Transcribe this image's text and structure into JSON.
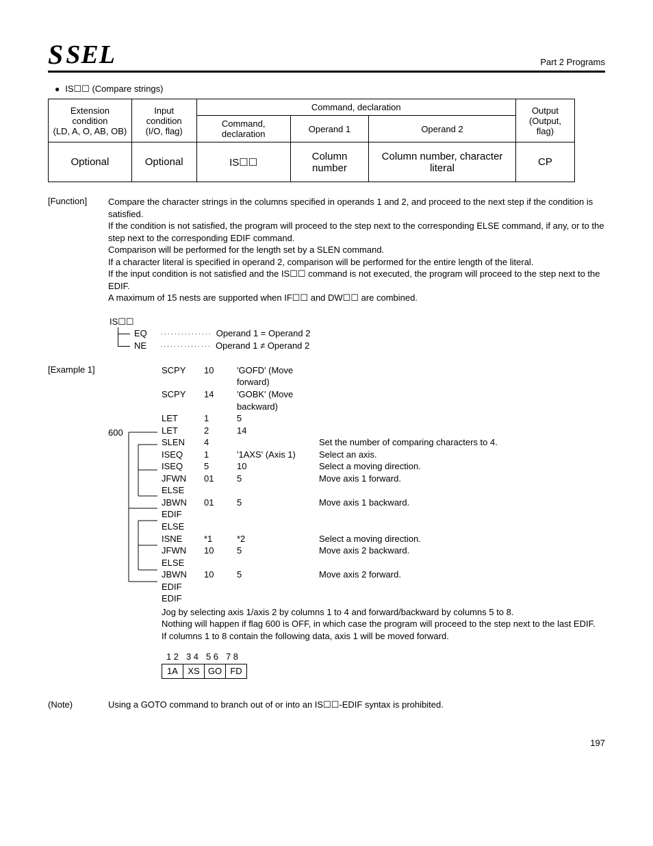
{
  "header": {
    "logo_s": "S",
    "logo_sel": "SEL",
    "part": "Part 2 Programs"
  },
  "section_title": "IS☐☐ (Compare strings)",
  "cmd_table": {
    "h_ext1": "Extension condition",
    "h_ext2": "(LD, A, O, AB, OB)",
    "h_in1": "Input condition",
    "h_in2": "(I/O, flag)",
    "h_cmd": "Command, declaration",
    "h_cmd_decl": "Command, declaration",
    "h_op1": "Operand 1",
    "h_op2": "Operand 2",
    "h_out1": "Output",
    "h_out2": "(Output, flag)",
    "r_ext": "Optional",
    "r_in": "Optional",
    "r_cmd": "IS☐☐",
    "r_op1": "Column number",
    "r_op2": "Column number, character literal",
    "r_out": "CP"
  },
  "function": {
    "label": "[Function]",
    "p1": "Compare the character strings in the columns specified in operands 1 and 2, and proceed to the next step if the condition is satisfied.",
    "p2": "If the condition is not satisfied, the program will proceed to the step next to the corresponding ELSE command, if any, or to the step next to the corresponding EDIF command.",
    "p3": "Comparison will be performed for the length set by a SLEN command.",
    "p4": "If a character literal is specified in operand 2, comparison will be performed for the entire length of the literal.",
    "p5": "If the input condition is not satisfied and the IS☐☐ command is not executed, the program will proceed to the step next to the EDIF.",
    "p6": "A maximum of 15 nests are supported when IF☐☐ and DW☐☐ are combined."
  },
  "tree": {
    "root": "IS☐☐",
    "eq": "EQ",
    "ne": "NE",
    "eq_desc": "Operand 1 = Operand 2",
    "ne_desc": "Operand 1 ≠ Operand 2"
  },
  "example": {
    "label": "[Example 1]",
    "flag": "600",
    "rows": [
      {
        "cmd": "SCPY",
        "a1": "10",
        "a2": "'GOFD' (Move forward)",
        "c": ""
      },
      {
        "cmd": "SCPY",
        "a1": "14",
        "a2": "'GOBK' (Move backward)",
        "c": ""
      },
      {
        "cmd": "LET",
        "a1": "1",
        "a2": "5",
        "c": ""
      },
      {
        "cmd": "LET",
        "a1": "2",
        "a2": "14",
        "c": ""
      },
      {
        "cmd": "SLEN",
        "a1": "4",
        "a2": "",
        "c": "Set the number of comparing characters to 4."
      },
      {
        "cmd": "ISEQ",
        "a1": "1",
        "a2": "'1AXS' (Axis 1)",
        "c": "Select an axis."
      },
      {
        "cmd": "ISEQ",
        "a1": "5",
        "a2": "10",
        "c": "Select a moving direction."
      },
      {
        "cmd": "JFWN",
        "a1": "01",
        "a2": "5",
        "c": "Move axis 1 forward."
      },
      {
        "cmd": "ELSE",
        "a1": "",
        "a2": "",
        "c": ""
      },
      {
        "cmd": "JBWN",
        "a1": "01",
        "a2": "5",
        "c": "Move axis 1 backward."
      },
      {
        "cmd": "EDIF",
        "a1": "",
        "a2": "",
        "c": ""
      },
      {
        "cmd": "ELSE",
        "a1": "",
        "a2": "",
        "c": ""
      },
      {
        "cmd": "ISNE",
        "a1": "*1",
        "a2": "*2",
        "c": "Select a moving direction."
      },
      {
        "cmd": "JFWN",
        "a1": "10",
        "a2": "5",
        "c": "Move axis 2 backward."
      },
      {
        "cmd": "ELSE",
        "a1": "",
        "a2": "",
        "c": ""
      },
      {
        "cmd": "JBWN",
        "a1": "10",
        "a2": "5",
        "c": "Move axis 2 forward."
      },
      {
        "cmd": "EDIF",
        "a1": "",
        "a2": "",
        "c": ""
      },
      {
        "cmd": "EDIF",
        "a1": "",
        "a2": "",
        "c": ""
      }
    ],
    "after1": "Jog by selecting axis 1/axis 2 by columns 1 to 4 and forward/backward by columns 5 to 8.",
    "after2": "Nothing will happen if flag 600 is OFF, in which case the program will proceed to the step next to the last EDIF.",
    "after3": "If columns 1 to 8 contain the following data, axis 1 will be moved forward.",
    "colnums": [
      "1 2",
      "3 4",
      "5 6",
      "7 8"
    ],
    "cells": [
      "1A",
      "XS",
      "GO",
      "FD"
    ]
  },
  "note": {
    "label": "(Note)",
    "text": "Using a GOTO command to branch out of or into an IS☐☐-EDIF syntax is prohibited."
  },
  "page": "197"
}
